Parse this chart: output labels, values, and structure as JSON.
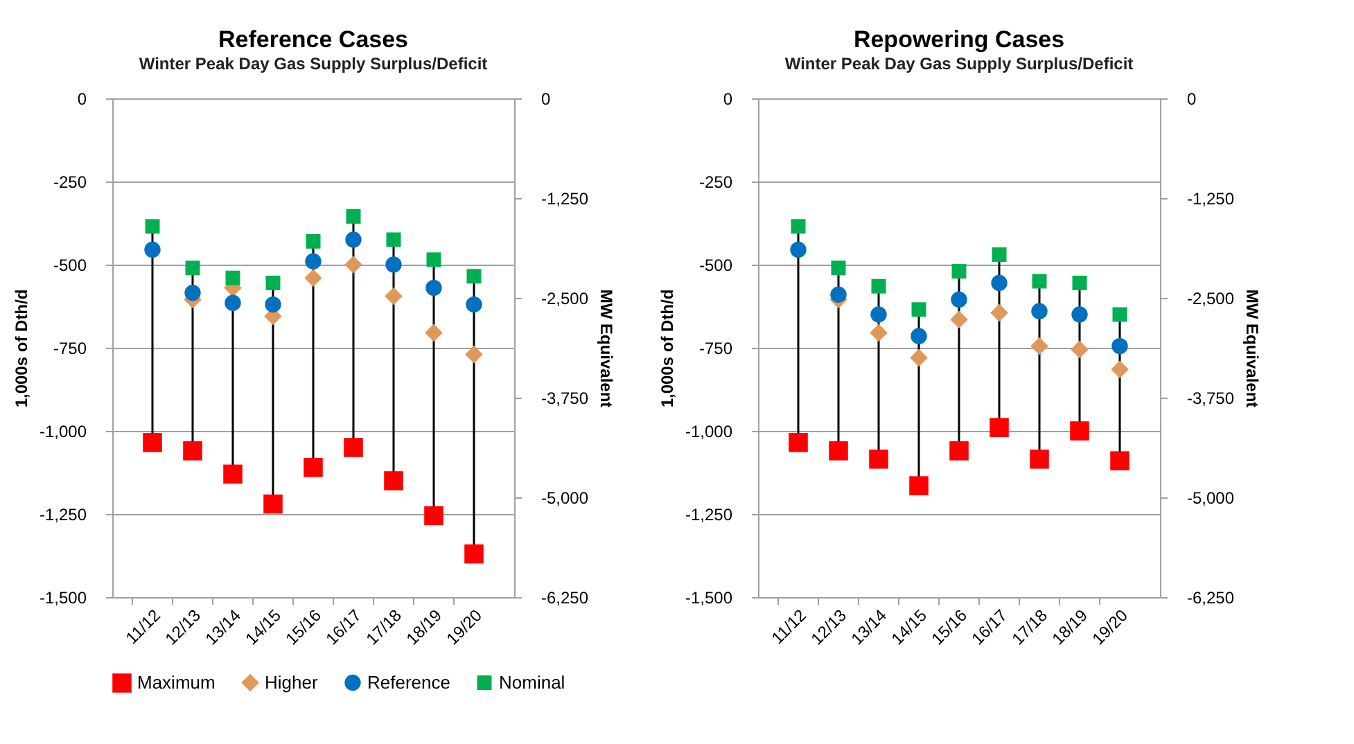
{
  "chart_data": [
    {
      "type": "scatter",
      "title": "Reference Cases",
      "subtitle": "Winter Peak Day Gas Supply Surplus/Deficit",
      "ylabel": "1,000s of Dth/d",
      "y2label": "MW Equivalent",
      "categories": [
        "11/12",
        "12/13",
        "13/14",
        "14/15",
        "15/16",
        "16/17",
        "17/18",
        "18/19",
        "19/20"
      ],
      "series": [
        {
          "name": "Maximum",
          "color": "#ff0000",
          "marker": "square",
          "values": [
            -1035,
            -1060,
            -1130,
            -1220,
            -1110,
            -1050,
            -1150,
            -1255,
            -1370
          ]
        },
        {
          "name": "Higher",
          "color": "#e0985a",
          "marker": "diamond",
          "values": [
            null,
            -605,
            -570,
            -655,
            -540,
            -500,
            -595,
            -705,
            -770
          ]
        },
        {
          "name": "Reference",
          "color": "#0070c0",
          "marker": "circle",
          "values": [
            -455,
            -585,
            -615,
            -620,
            -490,
            -425,
            -500,
            -570,
            -620
          ]
        },
        {
          "name": "Nominal",
          "color": "#00b050",
          "marker": "square",
          "values": [
            -385,
            -510,
            -540,
            -555,
            -430,
            -355,
            -425,
            -485,
            -535
          ]
        }
      ],
      "ylim": [
        -1500,
        0
      ],
      "yticks": [
        {
          "value": -1500,
          "label": "-1,500"
        },
        {
          "value": -1250,
          "label": "-1,250"
        },
        {
          "value": -1000,
          "label": "-1,000"
        },
        -750,
        -500,
        -250,
        0
      ],
      "y2lim": [
        -6250,
        0
      ],
      "y2ticks": [
        {
          "value": -6250,
          "label": "-6,250"
        },
        {
          "value": -5000,
          "label": "-5,000"
        },
        {
          "value": -3750,
          "label": "-3,750"
        },
        {
          "value": -2500,
          "label": "-2,500"
        },
        {
          "value": -1250,
          "label": "-1,250"
        },
        0
      ],
      "grid": "y",
      "legend": "bottom"
    },
    {
      "type": "scatter",
      "title": "Repowering Cases",
      "subtitle": "Winter Peak Day Gas Supply Surplus/Deficit",
      "ylabel": "1,000s of Dth/d",
      "y2label": "MW Equivalent",
      "categories": [
        "11/12",
        "12/13",
        "13/14",
        "14/15",
        "15/16",
        "16/17",
        "17/18",
        "18/19",
        "19/20"
      ],
      "series": [
        {
          "name": "Maximum",
          "color": "#ff0000",
          "marker": "square",
          "values": [
            -1035,
            -1060,
            -1085,
            -1165,
            -1060,
            -990,
            -1085,
            -1000,
            -1090
          ]
        },
        {
          "name": "Higher",
          "color": "#e0985a",
          "marker": "diamond",
          "values": [
            null,
            -605,
            -705,
            -780,
            -665,
            -645,
            -745,
            -755,
            -815
          ]
        },
        {
          "name": "Reference",
          "color": "#0070c0",
          "marker": "circle",
          "values": [
            -455,
            -590,
            -650,
            -715,
            -605,
            -555,
            -640,
            -650,
            -745
          ]
        },
        {
          "name": "Nominal",
          "color": "#00b050",
          "marker": "square",
          "values": [
            -385,
            -510,
            -565,
            -635,
            -520,
            -470,
            -550,
            -555,
            -650
          ]
        }
      ],
      "ylim": [
        -1500,
        0
      ],
      "yticks": [
        {
          "value": -1500,
          "label": "-1,500"
        },
        {
          "value": -1250,
          "label": "-1,250"
        },
        {
          "value": -1000,
          "label": "-1,000"
        },
        -750,
        -500,
        -250,
        0
      ],
      "y2lim": [
        -6250,
        0
      ],
      "y2ticks": [
        {
          "value": -6250,
          "label": "-6,250"
        },
        {
          "value": -5000,
          "label": "-5,000"
        },
        {
          "value": -3750,
          "label": "-3,750"
        },
        {
          "value": -2500,
          "label": "-2,500"
        },
        {
          "value": -1250,
          "label": "-1,250"
        },
        0
      ],
      "grid": "y",
      "legend": "bottom"
    }
  ]
}
